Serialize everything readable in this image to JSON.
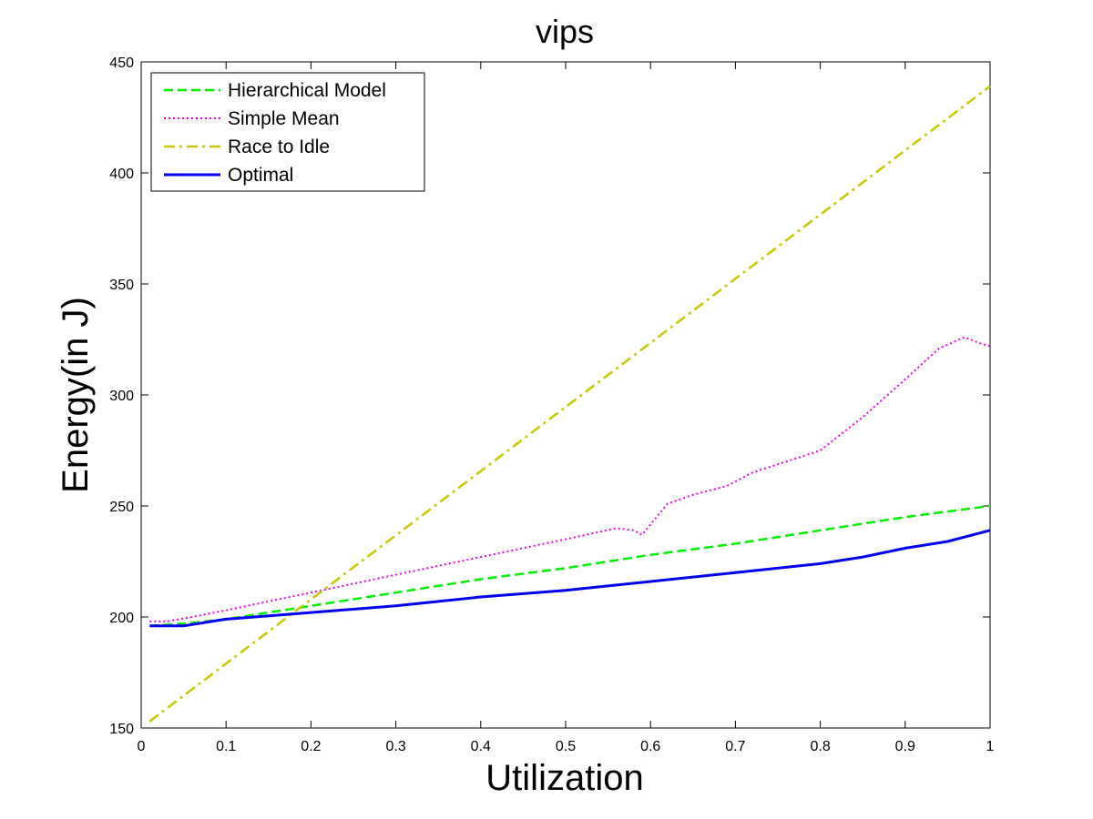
{
  "chart_data": {
    "type": "line",
    "title": "vips",
    "xlabel": "Utilization",
    "ylabel": "Energy(in J)",
    "xlim": [
      0,
      1
    ],
    "ylim": [
      150,
      450
    ],
    "xticks": [
      0,
      0.1,
      0.2,
      0.3,
      0.4,
      0.5,
      0.6,
      0.7,
      0.8,
      0.9,
      1
    ],
    "xtick_labels": [
      "0",
      "0.1",
      "0.2",
      "0.3",
      "0.4",
      "0.5",
      "0.6",
      "0.7",
      "0.8",
      "0.9",
      "1"
    ],
    "yticks": [
      150,
      200,
      250,
      300,
      350,
      400,
      450
    ],
    "ytick_labels": [
      "150",
      "200",
      "250",
      "300",
      "350",
      "400",
      "450"
    ],
    "grid": false,
    "legend_position": "top-left",
    "series": [
      {
        "name": "Hierarchical Model",
        "color": "#00ee00",
        "style": "dashed",
        "x": [
          0.01,
          0.05,
          0.1,
          0.15,
          0.2,
          0.3,
          0.4,
          0.5,
          0.6,
          0.7,
          0.8,
          0.9,
          1.0
        ],
        "y": [
          196,
          197,
          199,
          202,
          205,
          211,
          217,
          222,
          228,
          233,
          239,
          245,
          250
        ]
      },
      {
        "name": "Simple Mean",
        "color": "#ee00ee",
        "style": "dotted",
        "x": [
          0.01,
          0.03,
          0.06,
          0.1,
          0.15,
          0.2,
          0.3,
          0.4,
          0.5,
          0.56,
          0.58,
          0.59,
          0.62,
          0.65,
          0.69,
          0.72,
          0.8,
          0.85,
          0.9,
          0.94,
          0.97,
          0.99,
          1.0
        ],
        "y": [
          198,
          198,
          200,
          203,
          207,
          211,
          219,
          227,
          235,
          240,
          239,
          237,
          251,
          255,
          259,
          265,
          275,
          290,
          307,
          321,
          326,
          323,
          322
        ]
      },
      {
        "name": "Race to Idle",
        "color": "#c8c800",
        "style": "dashdot",
        "x": [
          0.01,
          1.0
        ],
        "y": [
          153,
          439
        ]
      },
      {
        "name": "Optimal",
        "color": "#0000ee",
        "style": "solid",
        "x": [
          0.01,
          0.05,
          0.1,
          0.2,
          0.3,
          0.4,
          0.5,
          0.6,
          0.7,
          0.8,
          0.85,
          0.9,
          0.95,
          1.0
        ],
        "y": [
          196,
          196,
          199,
          202,
          205,
          209,
          212,
          216,
          220,
          224,
          227,
          231,
          234,
          239
        ]
      }
    ]
  }
}
